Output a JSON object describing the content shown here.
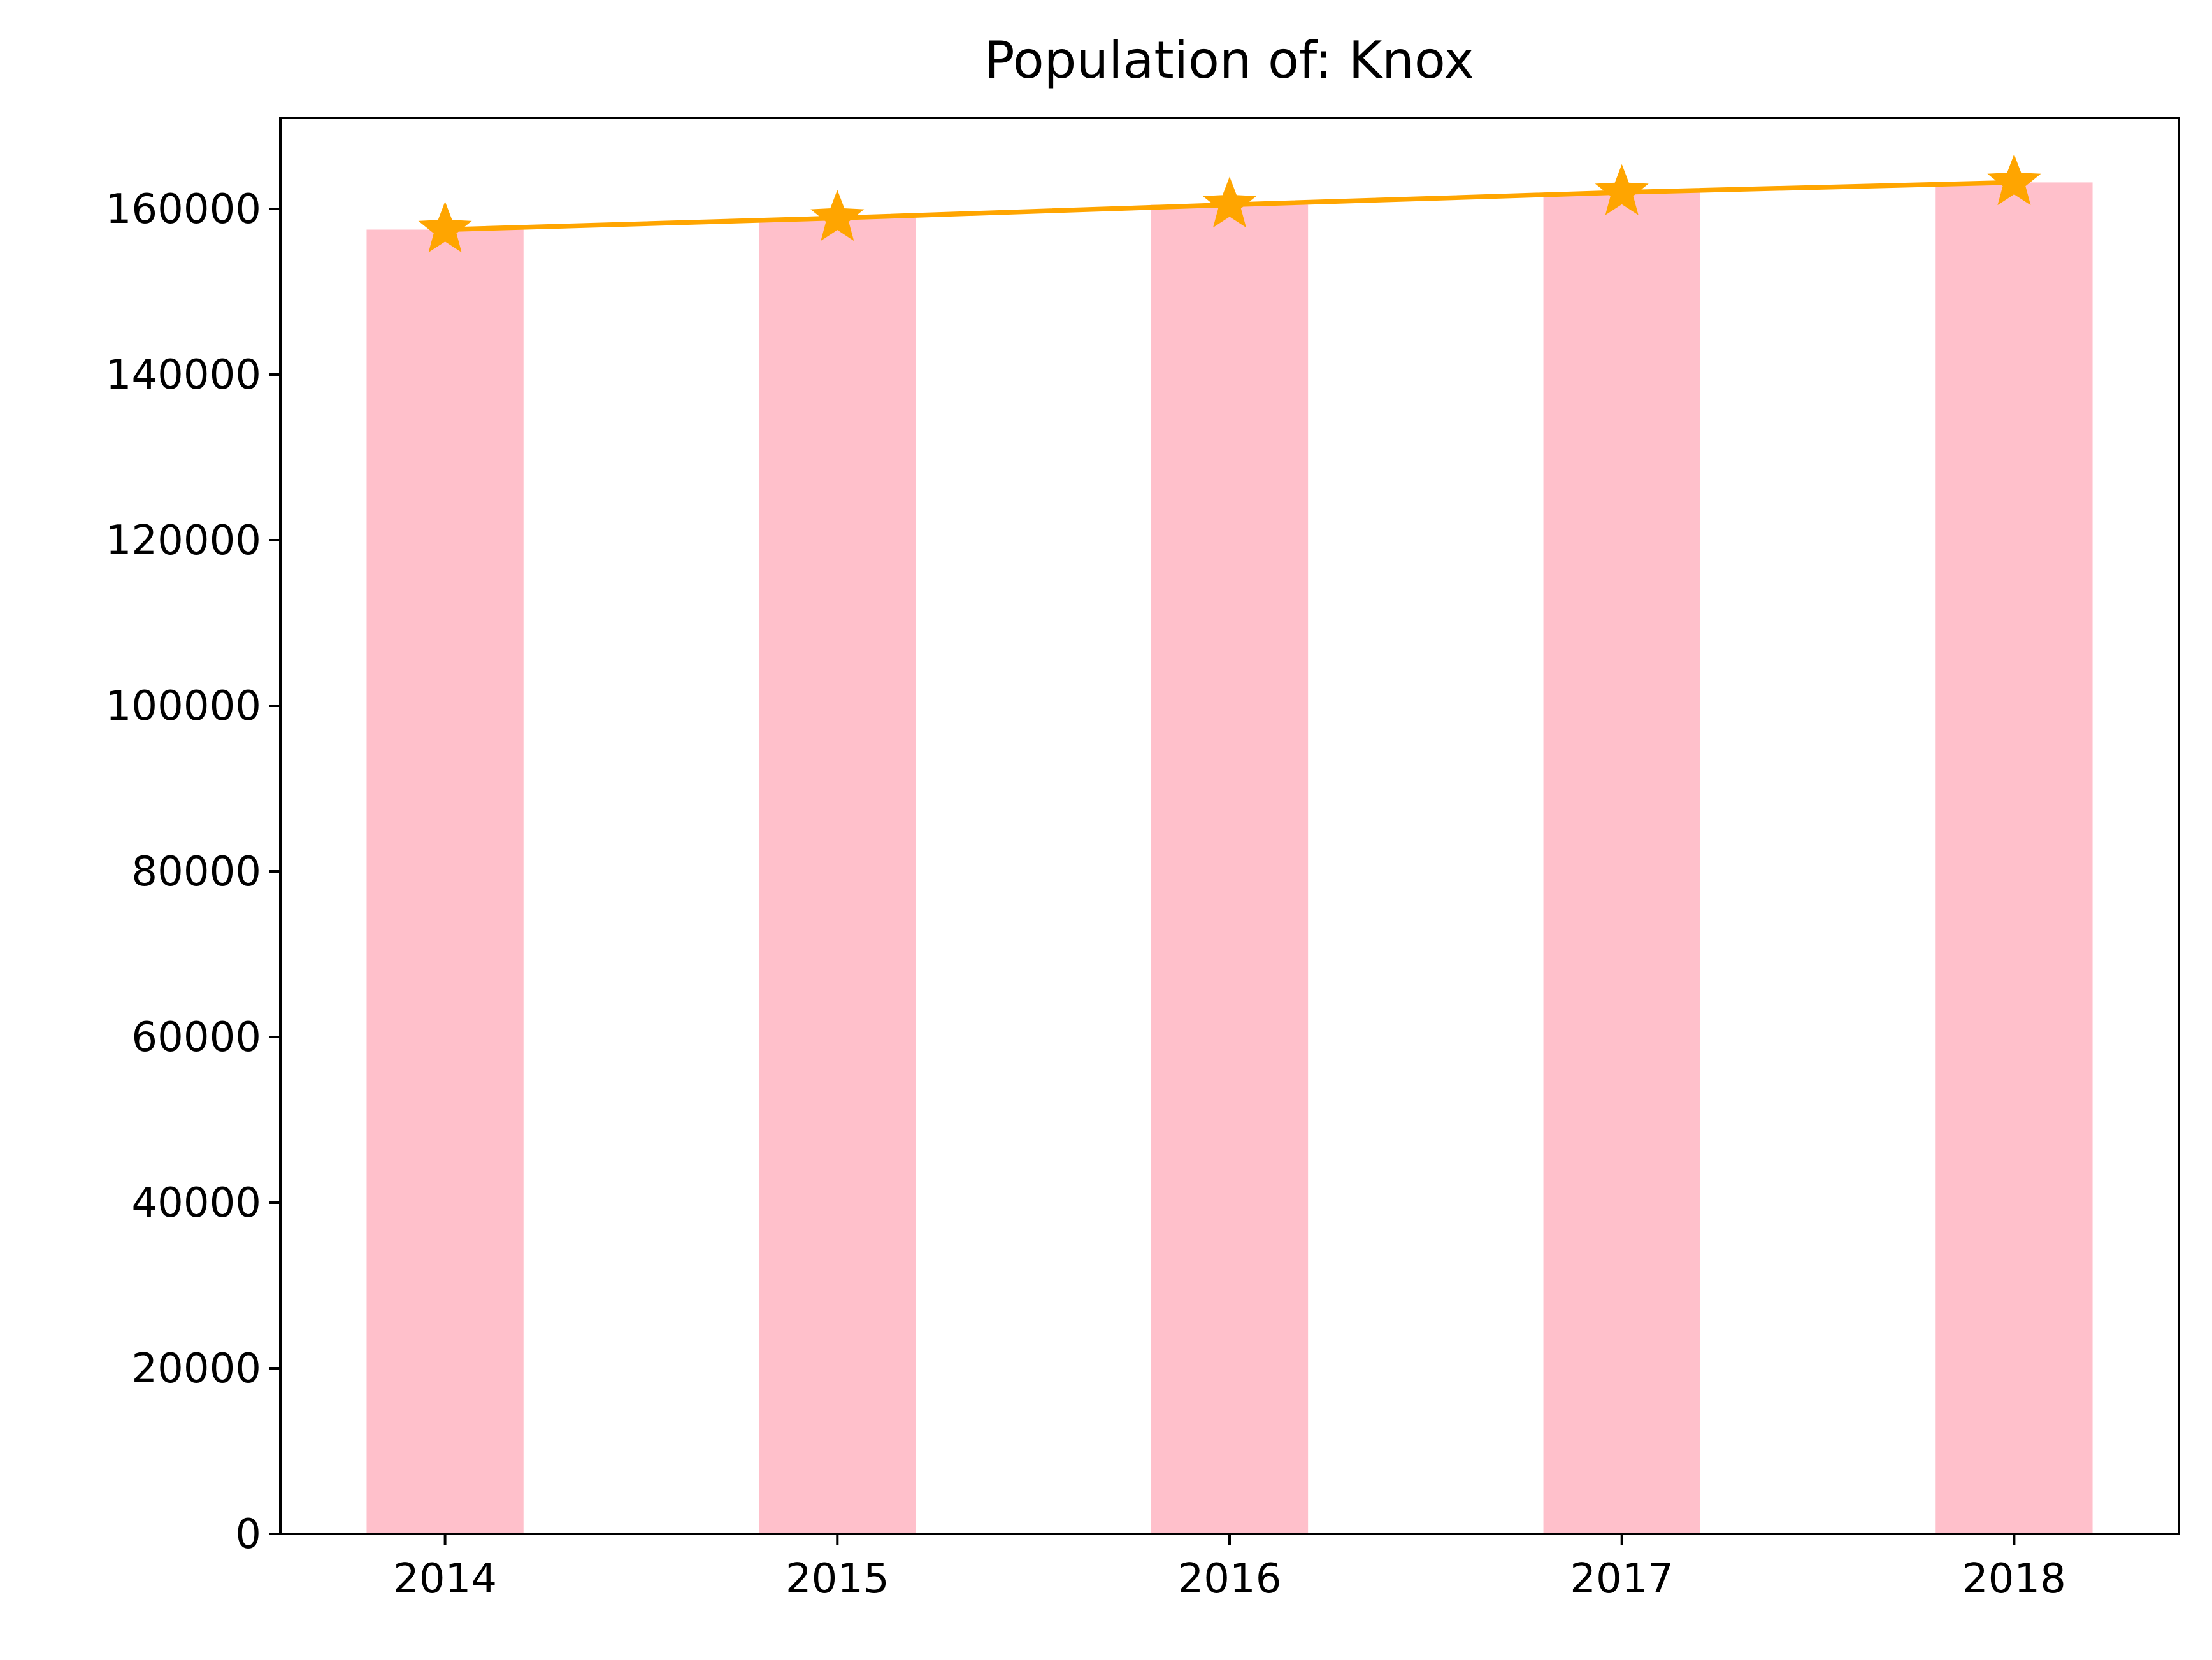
{
  "chart_data": {
    "type": "bar",
    "title": "Population of: Knox",
    "xlabel": "",
    "ylabel": "",
    "categories": [
      "2014",
      "2015",
      "2016",
      "2017",
      "2018"
    ],
    "series": [
      {
        "type": "bar",
        "values": [
          157500,
          158900,
          160500,
          162000,
          163200
        ],
        "color": "#ffc0cb"
      },
      {
        "type": "line",
        "marker": "star",
        "values": [
          157500,
          158900,
          160500,
          162000,
          163200
        ],
        "color": "#ffa500"
      }
    ],
    "ylim": [
      0,
      171000
    ],
    "yticks": [
      0,
      20000,
      40000,
      60000,
      80000,
      100000,
      120000,
      140000,
      160000
    ],
    "ytick_labels": [
      "0",
      "20000",
      "40000",
      "60000",
      "80000",
      "100000",
      "120000",
      "140000",
      "160000"
    ],
    "grid": false,
    "legend": false
  }
}
